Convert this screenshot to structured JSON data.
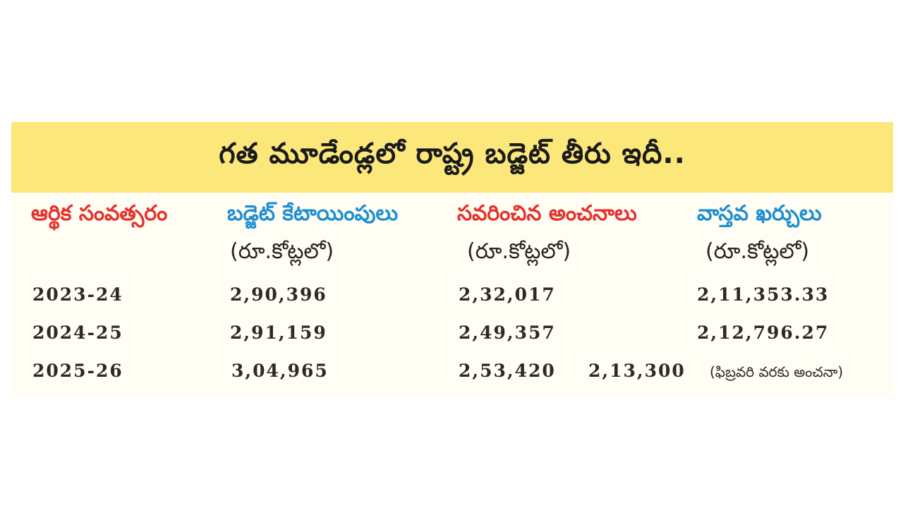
{
  "title": "గత మూడేండ్లలో రాష్ట్ర బడ్జెట్ తీరు ఇదీ..",
  "columns": [
    {
      "label": "ఆర్థిక సంవత్సరం",
      "unit": ""
    },
    {
      "label": "బడ్జెట్ కేటాయింపులు",
      "unit": "(రూ.కోట్లలో)"
    },
    {
      "label": "సవరించిన అంచనాలు",
      "unit": "(రూ.కోట్లలో)"
    },
    {
      "label": "వాస్తవ ఖర్చులు",
      "unit": "(రూ.కోట్లలో)"
    }
  ],
  "rows": [
    {
      "year": "2023-24",
      "allocation": "2,90,396",
      "revised": "2,32,017",
      "actual": "2,11,353.33",
      "note": ""
    },
    {
      "year": "2024-25",
      "allocation": "2,91,159",
      "revised": "2,49,357",
      "actual": "2,12,796.27",
      "note": ""
    },
    {
      "year": "2025-26",
      "allocation": "3,04,965",
      "revised": "2,53,420",
      "actual": "2,13,300",
      "note": "(ఫిబ్రవరి వరకు అంచనా)"
    }
  ],
  "colors": {
    "banner": "#fbe77a",
    "header_red": "#e5322d",
    "header_blue": "#1f8fd0"
  }
}
